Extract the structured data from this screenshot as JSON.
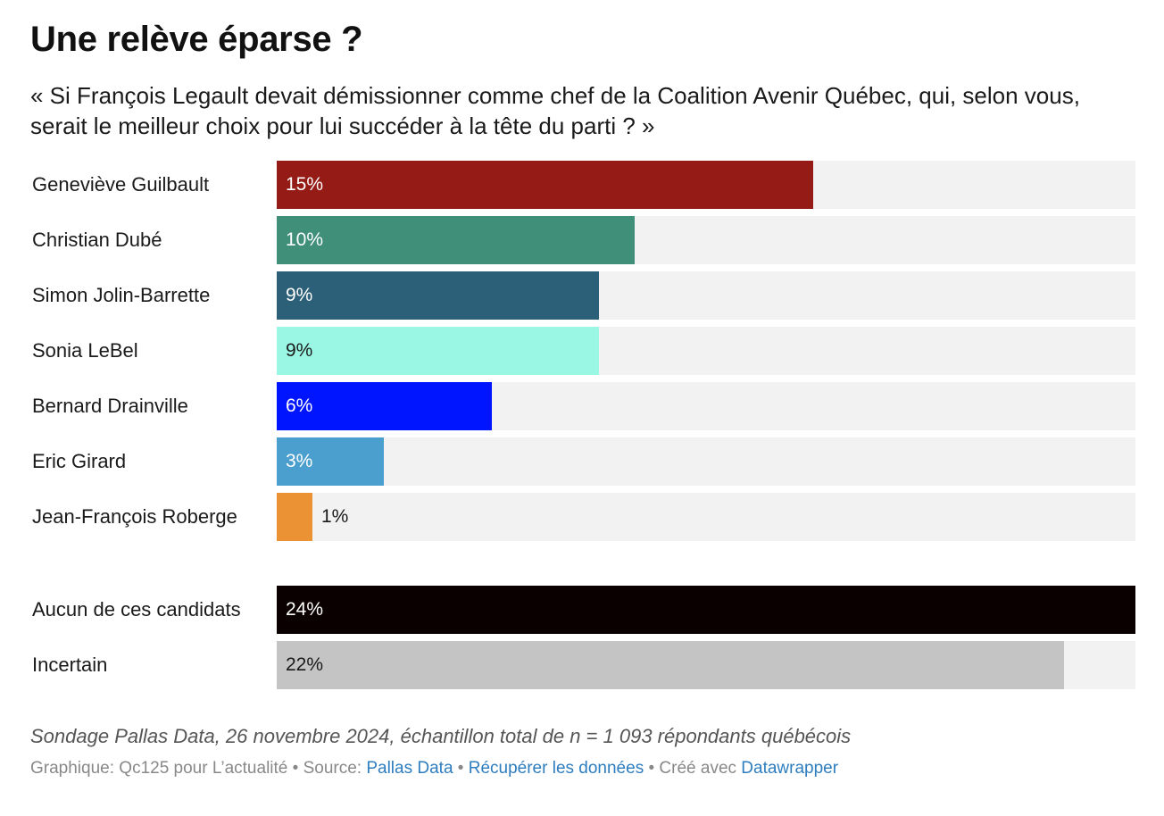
{
  "title": "Une relève éparse ?",
  "subtitle": "« Si François Legault devait démissionner comme chef de la Coalition Avenir Québec, qui, selon vous, serait le meilleur choix pour lui succéder à la tête du parti ? »",
  "notes": "Sondage Pallas Data, 26 novembre 2024, échantillon total de n = 1 093 répondants québécois",
  "footer": {
    "credit": "Graphique: Qc125 pour L’actualité",
    "sep": " • ",
    "source_label": "Source: ",
    "source_link": "Pallas Data",
    "get_data_link": "Récupérer les données",
    "created_label": "Créé avec ",
    "datawrapper_link": "Datawrapper"
  },
  "chart_data": {
    "type": "bar",
    "orientation": "horizontal",
    "unit": "%",
    "xlim": [
      0,
      24
    ],
    "categories": [
      "Geneviève Guilbault",
      "Christian Dubé",
      "Simon Jolin-Barrette",
      "Sonia LeBel",
      "Bernard Drainville",
      "Eric Girard",
      "Jean-François Roberge",
      "Aucun de ces candidats",
      "Incertain"
    ],
    "values": [
      15,
      10,
      9,
      9,
      6,
      3,
      1,
      24,
      22
    ],
    "labels": [
      "15%",
      "10%",
      "9%",
      "9%",
      "6%",
      "3%",
      "1%",
      "24%",
      "22%"
    ],
    "colors": [
      "#951c16",
      "#3f8f79",
      "#2c6078",
      "#9af7e4",
      "#0015ff",
      "#4b9fce",
      "#eb9234",
      "#0a0000",
      "#c4c4c4"
    ],
    "label_colors": [
      "#ffffff",
      "#ffffff",
      "#ffffff",
      "#1a1a1a",
      "#ffffff",
      "#ffffff",
      "#1a1a1a",
      "#ffffff",
      "#1a1a1a"
    ]
  }
}
